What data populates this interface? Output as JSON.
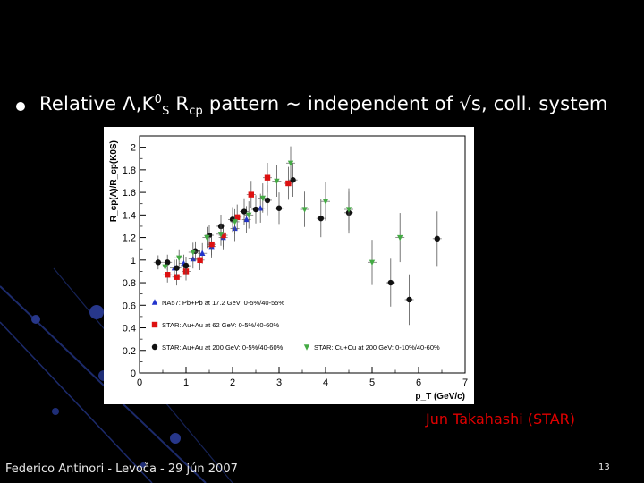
{
  "slide": {
    "title": {
      "prefix": "Relative Λ,K",
      "k_sup": "0",
      "k_sub": "S",
      "r": " R",
      "r_sub": "cp",
      "suffix": " pattern ~ independent of √s, coll. system"
    },
    "credit": "Jun Takahashi (STAR)",
    "footer_left": "Federico Antinori - Levoča - 29 jún 2007",
    "page_number": "13"
  },
  "chart_data": {
    "type": "scatter",
    "xlabel": "p_T (GeV/c)",
    "ylabel": "R_cp(Λ)/R_cp(K0S)",
    "xlim": [
      0,
      7
    ],
    "ylim": [
      0,
      2.1
    ],
    "x_ticks": [
      "0",
      "1",
      "2",
      "3",
      "4",
      "5",
      "6",
      "7"
    ],
    "y_ticks": [
      "0",
      "0.2",
      "0.4",
      "0.6",
      "0.8",
      "1",
      "1.2",
      "1.4",
      "1.6",
      "1.8",
      "2"
    ],
    "legend": [
      "NA57: Pb+Pb at 17.2 GeV: 0-5%/40-55%",
      "STAR: Au+Au at 62 GeV: 0-5%/40-60%",
      "STAR: Au+Au at 200 GeV: 0-5%/40-60%",
      "STAR: Cu+Cu at 200 GeV: 0-10%/40-60%"
    ],
    "series": [
      {
        "name": "NA57: Pb+Pb at 17.2 GeV: 0-5%/40-55%",
        "color": "#2233cc",
        "marker": "triangle-up",
        "points": [
          [
            0.75,
            0.93
          ],
          [
            0.95,
            0.97
          ],
          [
            1.15,
            1.01
          ],
          [
            1.35,
            1.06
          ],
          [
            1.55,
            1.12
          ],
          [
            1.8,
            1.2
          ],
          [
            2.05,
            1.28
          ],
          [
            2.3,
            1.36
          ],
          [
            2.6,
            1.46
          ]
        ]
      },
      {
        "name": "STAR: Au+Au at 62 GeV: 0-5%/40-60%",
        "color": "#dd1111",
        "marker": "square",
        "points": [
          [
            0.6,
            0.87
          ],
          [
            0.8,
            0.85
          ],
          [
            1.0,
            0.9
          ],
          [
            1.3,
            1.0
          ],
          [
            1.55,
            1.14
          ],
          [
            1.8,
            1.22
          ],
          [
            2.1,
            1.38
          ],
          [
            2.4,
            1.58
          ],
          [
            2.75,
            1.73
          ],
          [
            3.2,
            1.68
          ]
        ]
      },
      {
        "name": "STAR: Au+Au at 200 GeV: 0-5%/40-60%",
        "color": "#111111",
        "marker": "circle",
        "points": [
          [
            0.4,
            0.98
          ],
          [
            0.6,
            0.98
          ],
          [
            0.8,
            0.93
          ],
          [
            1.0,
            0.95
          ],
          [
            1.2,
            1.08
          ],
          [
            1.5,
            1.22
          ],
          [
            1.75,
            1.3
          ],
          [
            2.0,
            1.36
          ],
          [
            2.25,
            1.43
          ],
          [
            2.5,
            1.45
          ],
          [
            2.75,
            1.53
          ],
          [
            3.0,
            1.46
          ],
          [
            3.3,
            1.71
          ],
          [
            3.9,
            1.37
          ],
          [
            4.5,
            1.42
          ],
          [
            5.4,
            0.8
          ],
          [
            5.8,
            0.65
          ],
          [
            6.4,
            1.19
          ]
        ]
      },
      {
        "name": "STAR: Cu+Cu at 200 GeV: 0-10%/40-60%",
        "color": "#44aa44",
        "marker": "triangle-down",
        "points": [
          [
            0.55,
            0.94
          ],
          [
            0.85,
            1.02
          ],
          [
            1.15,
            1.07
          ],
          [
            1.45,
            1.2
          ],
          [
            1.75,
            1.23
          ],
          [
            2.05,
            1.34
          ],
          [
            2.35,
            1.4
          ],
          [
            2.65,
            1.55
          ],
          [
            2.95,
            1.7
          ],
          [
            3.25,
            1.86
          ],
          [
            3.55,
            1.45
          ],
          [
            4.0,
            1.52
          ],
          [
            4.5,
            1.45
          ],
          [
            5.0,
            0.98
          ],
          [
            5.6,
            1.2
          ]
        ]
      }
    ]
  }
}
